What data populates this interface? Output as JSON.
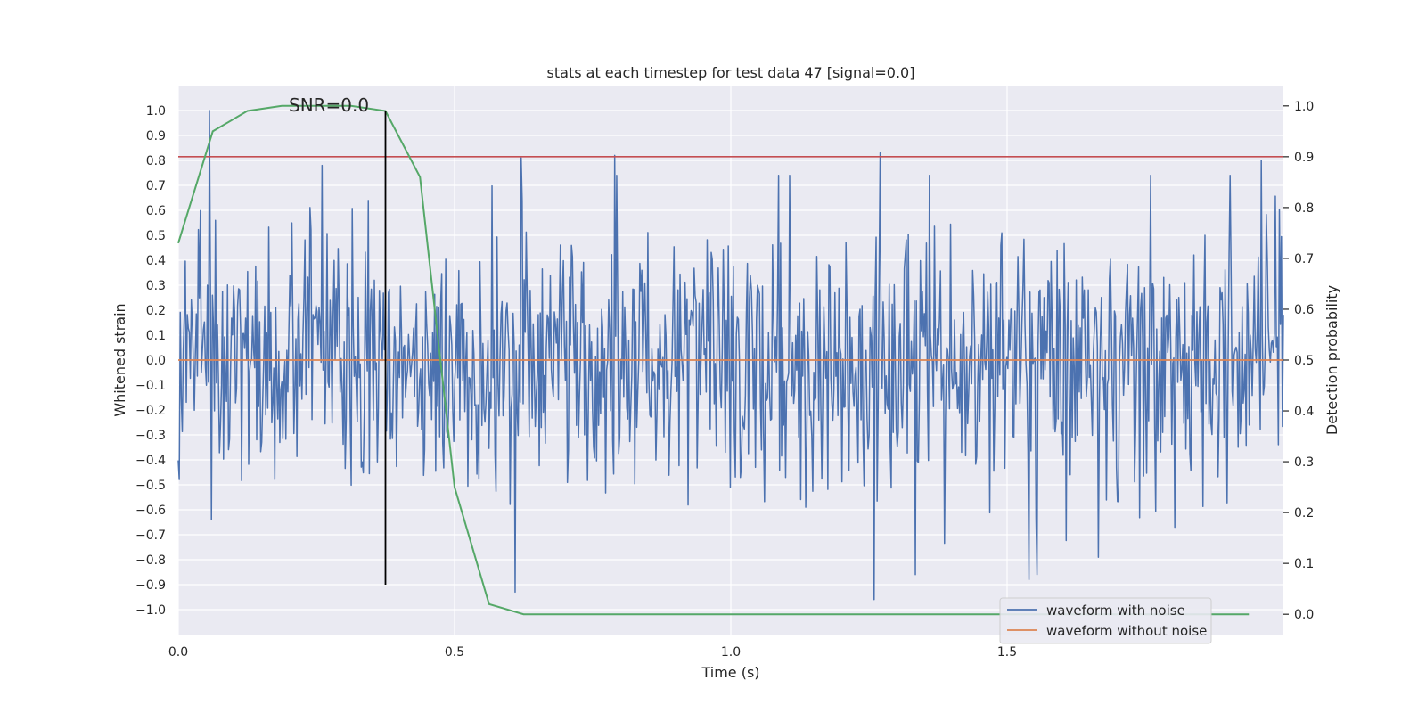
{
  "chart_data": {
    "type": "line",
    "title": "stats at each timestep for test data 47 [signal=0.0]",
    "xlabel": "Time (s)",
    "ylabel_left": "Whitened strain",
    "ylabel_right": "Detection probability",
    "xlim": [
      0.0,
      2.0
    ],
    "ylim_left": [
      -1.1,
      1.1
    ],
    "ylim_right": [
      -0.04,
      1.04
    ],
    "x_ticks": [
      0.0,
      0.5,
      1.0,
      1.5
    ],
    "x_tick_labels": [
      "0.0",
      "0.5",
      "1.0",
      "1.5"
    ],
    "y_left_ticks": [
      1.0,
      0.9,
      0.8,
      0.7,
      0.6,
      0.5,
      0.4,
      0.3,
      0.2,
      0.1,
      0.0,
      -0.1,
      -0.2,
      -0.3,
      -0.4,
      -0.5,
      -0.6,
      -0.7,
      -0.8,
      -0.9,
      -1.0
    ],
    "y_left_tick_labels": [
      "1.0",
      "0.9",
      "0.8",
      "0.7",
      "0.6",
      "0.5",
      "0.4",
      "0.3",
      "0.2",
      "0.1",
      "0.0",
      "−0.1",
      "−0.2",
      "−0.3",
      "−0.4",
      "−0.5",
      "−0.6",
      "−0.7",
      "−0.8",
      "−0.9",
      "−1.0"
    ],
    "y_right_ticks": [
      1.0,
      0.9,
      0.8,
      0.7,
      0.6,
      0.5,
      0.4,
      0.3,
      0.2,
      0.1,
      0.0
    ],
    "y_right_tick_labels": [
      "1.0",
      "0.9",
      "0.8",
      "0.7",
      "0.6",
      "0.5",
      "0.4",
      "0.3",
      "0.2",
      "0.1",
      "0.0"
    ],
    "series": [
      {
        "name": "waveform with noise",
        "color": "#4c72b0",
        "axis": "left",
        "description": "dense noise samples between roughly -0.9 and 1.0",
        "x_end": 2.0,
        "sample_count": 1100,
        "extremes": [
          [
            0.056,
            1.0
          ],
          [
            0.26,
            0.78
          ],
          [
            0.62,
            0.81
          ],
          [
            0.61,
            -0.93
          ],
          [
            0.79,
            0.82
          ],
          [
            1.27,
            0.83
          ],
          [
            1.26,
            -0.96
          ],
          [
            1.54,
            -0.88
          ],
          [
            1.665,
            -0.79
          ],
          [
            1.96,
            0.8
          ]
        ]
      },
      {
        "name": "waveform without noise",
        "color": "#dd8452",
        "axis": "left",
        "x": [
          0.0,
          2.0
        ],
        "y": [
          0.0,
          0.0
        ]
      },
      {
        "name": "detection probability",
        "color": "#55a868",
        "axis": "right",
        "x": [
          0.0,
          0.0625,
          0.125,
          0.1875,
          0.25,
          0.3125,
          0.375,
          0.4375,
          0.5,
          0.5625,
          0.625,
          0.6875,
          0.75,
          1.0,
          1.25,
          1.5,
          1.75,
          1.9375
        ],
        "y": [
          0.73,
          0.95,
          0.99,
          1.0,
          1.0,
          1.0,
          0.99,
          0.86,
          0.25,
          0.02,
          0.0,
          0.0,
          0.0,
          0.0,
          0.0,
          0.0,
          0.0,
          0.0
        ]
      }
    ],
    "threshold": {
      "value": 0.9,
      "axis": "right",
      "color": "#c44e52"
    },
    "marker": {
      "x": 0.375,
      "color": "#000000",
      "ymin": -0.9,
      "ymax": 1.0
    },
    "annotation": {
      "text": "SNR=0.0",
      "x": 0.2,
      "y": 1.0
    },
    "legend": {
      "location": "lower-right",
      "entries": [
        {
          "label": "waveform with noise",
          "color": "#4c72b0"
        },
        {
          "label": "waveform without noise",
          "color": "#dd8452"
        }
      ]
    },
    "grid": true,
    "background_color": "#eaeaf2",
    "grid_color": "#ffffff"
  }
}
